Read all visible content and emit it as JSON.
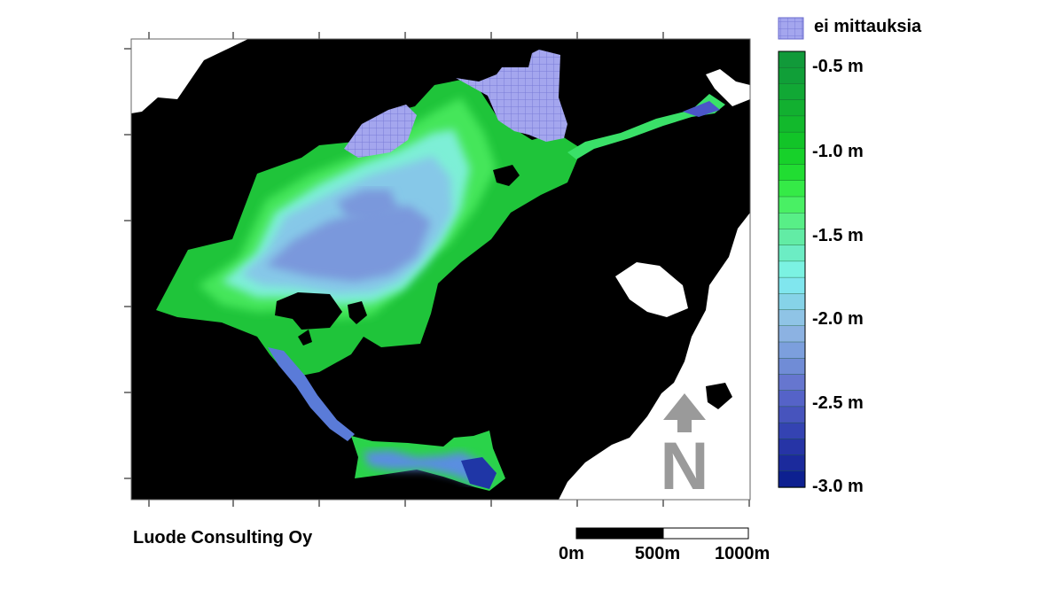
{
  "legend": {
    "no_data_label": "ei mittauksia",
    "no_data_color": "#8f91e6",
    "ticks": [
      "-0.5 m",
      "-1.0 m",
      "-1.5 m",
      "-2.0 m",
      "-2.5 m",
      "-3.0 m"
    ],
    "scale_colors": [
      "#119a3a",
      "#109f38",
      "#11a835",
      "#12b030",
      "#12b92c",
      "#12c428",
      "#17d12a",
      "#21dd32",
      "#35ea47",
      "#49f064",
      "#58ef87",
      "#62eca5",
      "#6cedc4",
      "#7bf2e2",
      "#80e6ee",
      "#86d3e8",
      "#8fc4e6",
      "#8cb2e2",
      "#7c9fdd",
      "#708cd6",
      "#6676cf",
      "#5563c8",
      "#4754bd",
      "#3443b2",
      "#2634a6",
      "#1b2a9c",
      "#0d2090"
    ]
  },
  "credit": "Luode Consulting Oy",
  "scalebar": {
    "labels": [
      "0m",
      "500m",
      "1000m"
    ]
  },
  "north_arrow": {
    "letter": "N",
    "icon": "north-arrow-icon",
    "color": "#9a9a9a"
  }
}
